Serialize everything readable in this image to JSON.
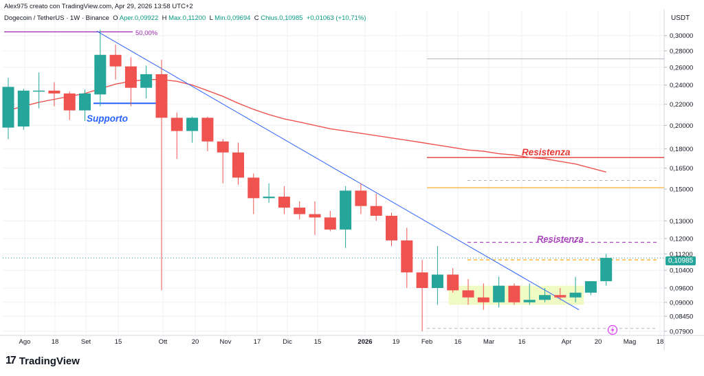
{
  "header": {
    "credit": "Alex975 creato con TradingView.com, Apr 29, 2026 13:58 UTC+2",
    "symbol": "Dogecoin / TetherUS · 1W · Binance",
    "open_label": "O",
    "open": "Aper.0,09922",
    "high_label": "H",
    "high": "Max.0,11200",
    "low_label": "L",
    "low": "Min.0,09694",
    "close_label": "C",
    "close": "Chius.0,10985",
    "change": "+0,01063 (+10,71%)"
  },
  "unit_label": "USDT",
  "last_price_tag": "0,10985",
  "brand": {
    "logo": "17",
    "name": "TradingView"
  },
  "colors": {
    "up": "#26a69a",
    "down": "#ef5350",
    "ma": "#ef5350",
    "trendline": "#2962ff",
    "support": "#2962ff",
    "resistance_red": "#e53935",
    "resistance_purple": "#ab47bc",
    "orange": "#ff9800",
    "grid": "#eef0f3"
  },
  "chart_data": {
    "type": "candlestick",
    "title": "",
    "xlabel": "",
    "ylabel": "USDT",
    "scale": "log",
    "ylim": [
      0.0775,
      0.315
    ],
    "y_ticks": [
      "0,30000",
      "0,28000",
      "0,26000",
      "0,24000",
      "0,22000",
      "0,20000",
      "0,18000",
      "0,16500",
      "0,15000",
      "0,13000",
      "0,12000",
      "0,11200",
      "0,10985",
      "0,10400",
      "0,09600",
      "0,09000",
      "0,08450",
      "0,07900"
    ],
    "x_ticks": [
      "Ago",
      "18",
      "Set",
      "15",
      "Ott",
      "20",
      "Nov",
      "17",
      "Dic",
      "15",
      "2026",
      "19",
      "Feb",
      "16",
      "Mar",
      "16",
      "Apr",
      "20",
      "Mag",
      "18"
    ],
    "candles": [
      {
        "o": 0.198,
        "h": 0.248,
        "l": 0.188,
        "c": 0.238
      },
      {
        "o": 0.199,
        "h": 0.236,
        "l": 0.196,
        "c": 0.234
      },
      {
        "o": 0.234,
        "h": 0.254,
        "l": 0.216,
        "c": 0.234
      },
      {
        "o": 0.234,
        "h": 0.243,
        "l": 0.218,
        "c": 0.231
      },
      {
        "o": 0.231,
        "h": 0.233,
        "l": 0.205,
        "c": 0.214
      },
      {
        "o": 0.214,
        "h": 0.235,
        "l": 0.204,
        "c": 0.231
      },
      {
        "o": 0.23,
        "h": 0.308,
        "l": 0.218,
        "c": 0.275
      },
      {
        "o": 0.275,
        "h": 0.288,
        "l": 0.246,
        "c": 0.261
      },
      {
        "o": 0.261,
        "h": 0.272,
        "l": 0.218,
        "c": 0.237
      },
      {
        "o": 0.237,
        "h": 0.262,
        "l": 0.226,
        "c": 0.252
      },
      {
        "o": 0.252,
        "h": 0.269,
        "l": 0.095,
        "c": 0.207
      },
      {
        "o": 0.207,
        "h": 0.212,
        "l": 0.172,
        "c": 0.195
      },
      {
        "o": 0.195,
        "h": 0.208,
        "l": 0.185,
        "c": 0.207
      },
      {
        "o": 0.207,
        "h": 0.208,
        "l": 0.178,
        "c": 0.186
      },
      {
        "o": 0.186,
        "h": 0.188,
        "l": 0.154,
        "c": 0.177
      },
      {
        "o": 0.177,
        "h": 0.185,
        "l": 0.153,
        "c": 0.158
      },
      {
        "o": 0.158,
        "h": 0.161,
        "l": 0.134,
        "c": 0.144
      },
      {
        "o": 0.144,
        "h": 0.154,
        "l": 0.141,
        "c": 0.145
      },
      {
        "o": 0.145,
        "h": 0.152,
        "l": 0.134,
        "c": 0.138
      },
      {
        "o": 0.138,
        "h": 0.142,
        "l": 0.131,
        "c": 0.134
      },
      {
        "o": 0.134,
        "h": 0.142,
        "l": 0.122,
        "c": 0.132
      },
      {
        "o": 0.132,
        "h": 0.136,
        "l": 0.124,
        "c": 0.125
      },
      {
        "o": 0.125,
        "h": 0.152,
        "l": 0.115,
        "c": 0.149
      },
      {
        "o": 0.149,
        "h": 0.154,
        "l": 0.134,
        "c": 0.139
      },
      {
        "o": 0.139,
        "h": 0.147,
        "l": 0.13,
        "c": 0.133
      },
      {
        "o": 0.133,
        "h": 0.135,
        "l": 0.116,
        "c": 0.119
      },
      {
        "o": 0.119,
        "h": 0.126,
        "l": 0.096,
        "c": 0.103
      },
      {
        "o": 0.103,
        "h": 0.109,
        "l": 0.079,
        "c": 0.096
      },
      {
        "o": 0.096,
        "h": 0.116,
        "l": 0.089,
        "c": 0.102
      },
      {
        "o": 0.102,
        "h": 0.105,
        "l": 0.094,
        "c": 0.095
      },
      {
        "o": 0.095,
        "h": 0.1,
        "l": 0.089,
        "c": 0.092
      },
      {
        "o": 0.092,
        "h": 0.098,
        "l": 0.087,
        "c": 0.09
      },
      {
        "o": 0.09,
        "h": 0.101,
        "l": 0.088,
        "c": 0.097
      },
      {
        "o": 0.097,
        "h": 0.098,
        "l": 0.089,
        "c": 0.09
      },
      {
        "o": 0.09,
        "h": 0.098,
        "l": 0.089,
        "c": 0.091
      },
      {
        "o": 0.091,
        "h": 0.096,
        "l": 0.09,
        "c": 0.093
      },
      {
        "o": 0.093,
        "h": 0.096,
        "l": 0.091,
        "c": 0.092
      },
      {
        "o": 0.092,
        "h": 0.101,
        "l": 0.09,
        "c": 0.094
      },
      {
        "o": 0.094,
        "h": 0.099,
        "l": 0.093,
        "c": 0.099
      },
      {
        "o": 0.099,
        "h": 0.112,
        "l": 0.097,
        "c": 0.11
      }
    ],
    "moving_average": [
      0.214,
      0.218,
      0.222,
      0.225,
      0.228,
      0.231,
      0.236,
      0.241,
      0.244,
      0.246,
      0.246,
      0.244,
      0.24,
      0.234,
      0.228,
      0.221,
      0.215,
      0.21,
      0.206,
      0.203,
      0.2,
      0.197,
      0.195,
      0.193,
      0.191,
      0.189,
      0.187,
      0.185,
      0.183,
      0.181,
      0.179,
      0.178,
      0.176,
      0.175,
      0.173,
      0.172,
      0.17,
      0.168,
      0.165,
      0.162
    ],
    "annotations": {
      "fib_label": "50,00%",
      "support_label": "Supporto",
      "resistance_label_1": "Resistenza",
      "resistance_label_2": "Resistenza",
      "fib_level": 0.305,
      "support_level": 0.221,
      "resistance_red_level": 0.173,
      "resistance_purple_level": 0.118,
      "orange_level_1": 0.151,
      "orange_level_2": 0.109,
      "grey_level": 0.27,
      "dashed_grey_1": 0.156,
      "dashed_grey_2": 0.08,
      "dotted_last": 0.1099,
      "trendline": {
        "from_index": 6,
        "from_price": 0.306,
        "to_index": 37,
        "to_price": 0.087
      },
      "consolidation_box": {
        "from_index": 29,
        "to_index": 37,
        "low": 0.089,
        "high": 0.097
      }
    }
  }
}
